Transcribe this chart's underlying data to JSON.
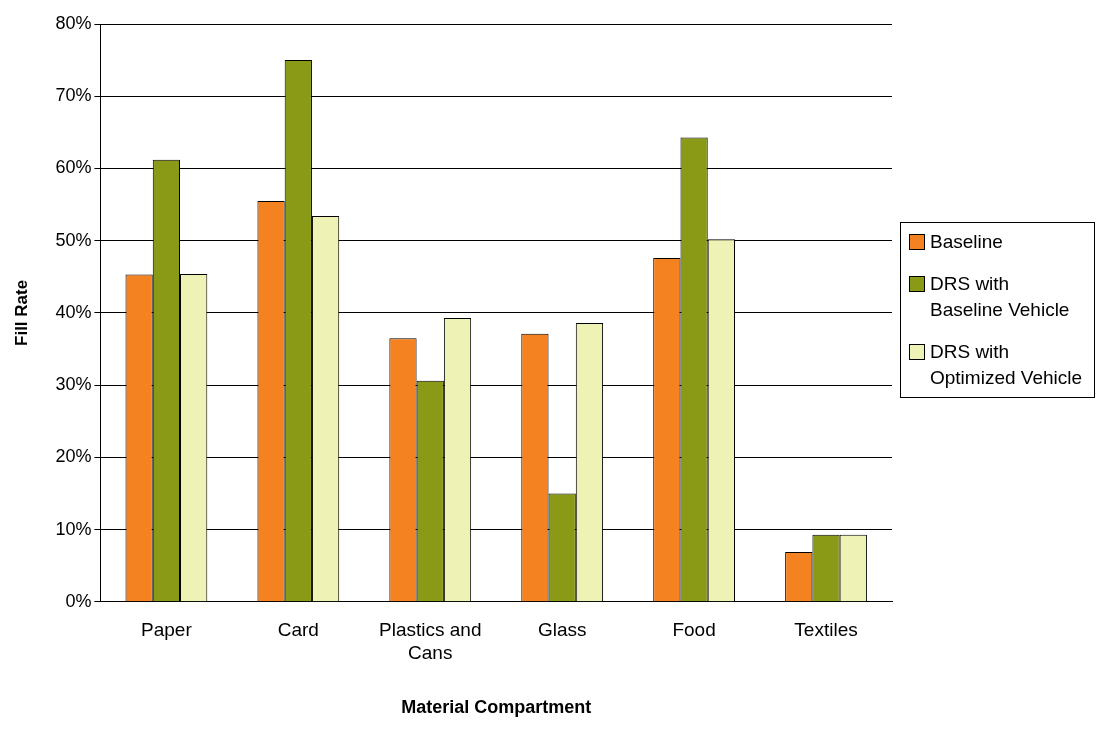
{
  "chart_data": {
    "type": "bar",
    "xlabel": "Material Compartment",
    "ylabel": "Fill Rate",
    "categories": [
      "Paper",
      "Card",
      "Plastics and Cans",
      "Glass",
      "Food",
      "Textiles"
    ],
    "series": [
      {
        "name": "Baseline",
        "color": "#f58220",
        "values": [
          45.3,
          55.5,
          36.5,
          37.1,
          47.6,
          6.9
        ]
      },
      {
        "name": "DRS with Baseline Vehicle",
        "color": "#8a9a16",
        "values": [
          61.2,
          75,
          30.6,
          15,
          64.3,
          9.3
        ]
      },
      {
        "name": "DRS with Optimized Vehicle",
        "color": "#eef2b4",
        "values": [
          45.4,
          53.4,
          39.3,
          38.6,
          50.2,
          9.3
        ]
      }
    ],
    "ylim": [
      0,
      80
    ],
    "yticks": [
      {
        "value": 0,
        "label": "0%"
      },
      {
        "value": 10,
        "label": "10%"
      },
      {
        "value": 20,
        "label": "20%"
      },
      {
        "value": 30,
        "label": "30%"
      },
      {
        "value": 40,
        "label": "40%"
      },
      {
        "value": 50,
        "label": "50%"
      },
      {
        "value": 60,
        "label": "60%"
      },
      {
        "value": 70,
        "label": "70%"
      },
      {
        "value": 80,
        "label": "80%"
      }
    ],
    "grid": "y",
    "legend": "right"
  }
}
